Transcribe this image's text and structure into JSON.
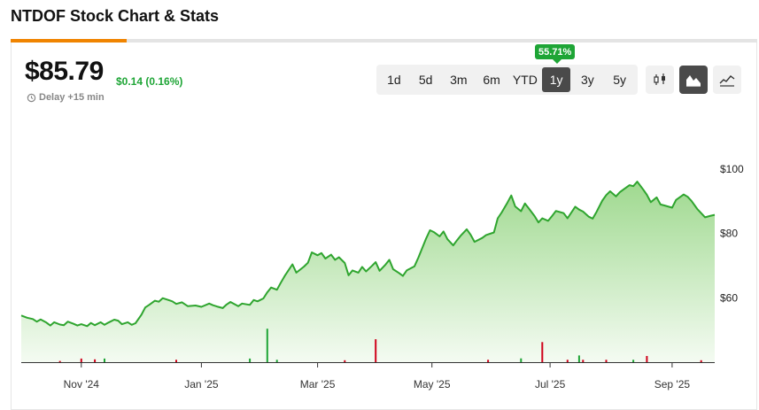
{
  "page": {
    "title": "NTDOF Stock Chart & Stats"
  },
  "quote": {
    "price": "$85.79",
    "change": "$0.14 (0.16%)",
    "delay": "Delay +15 min",
    "return_badge": "55.71%"
  },
  "ranges": [
    "1d",
    "5d",
    "3m",
    "6m",
    "YTD",
    "1y",
    "3y",
    "5y"
  ],
  "active_range": "1y",
  "chart_types": [
    {
      "name": "candlestick-icon",
      "active": false
    },
    {
      "name": "mountain-chart-icon",
      "active": true
    },
    {
      "name": "line-chart-icon",
      "active": false
    }
  ],
  "colors": {
    "accent": "#f08400",
    "up": "#1ea536",
    "down": "#d0021b",
    "line": "#2fa52f",
    "area_top": "#9fd98f"
  },
  "chart_data": {
    "type": "area",
    "ylim": [
      40,
      103
    ],
    "y_ticks": [
      {
        "label": "$100",
        "value": 100
      },
      {
        "label": "$80",
        "value": 80
      },
      {
        "label": "$60",
        "value": 60
      }
    ],
    "x_ticks": [
      {
        "label": "Nov '24",
        "date": "2024-11-01"
      },
      {
        "label": "Jan '25",
        "date": "2025-01-02"
      },
      {
        "label": "Mar '25",
        "date": "2025-03-03"
      },
      {
        "label": "May '25",
        "date": "2025-05-01"
      },
      {
        "label": "Jul '25",
        "date": "2025-07-01"
      },
      {
        "label": "Sep '25",
        "date": "2025-09-02"
      }
    ],
    "price_series": [
      [
        "2024-10-01",
        54.5
      ],
      [
        "2024-10-04",
        53.8
      ],
      [
        "2024-10-07",
        53.4
      ],
      [
        "2024-10-09",
        52.6
      ],
      [
        "2024-10-11",
        53.3
      ],
      [
        "2024-10-14",
        52.3
      ],
      [
        "2024-10-16",
        51.4
      ],
      [
        "2024-10-18",
        52.4
      ],
      [
        "2024-10-21",
        51.7
      ],
      [
        "2024-10-23",
        51.5
      ],
      [
        "2024-10-25",
        52.6
      ],
      [
        "2024-10-28",
        51.9
      ],
      [
        "2024-10-30",
        51.4
      ],
      [
        "2024-11-01",
        51.8
      ],
      [
        "2024-11-04",
        51.2
      ],
      [
        "2024-11-06",
        52.2
      ],
      [
        "2024-11-08",
        51.5
      ],
      [
        "2024-11-11",
        52.4
      ],
      [
        "2024-11-13",
        51.6
      ],
      [
        "2024-11-15",
        52.3
      ],
      [
        "2024-11-18",
        53.2
      ],
      [
        "2024-11-20",
        52.9
      ],
      [
        "2024-11-22",
        51.8
      ],
      [
        "2024-11-25",
        52.4
      ],
      [
        "2024-11-27",
        51.6
      ],
      [
        "2024-11-29",
        52.1
      ],
      [
        "2024-12-02",
        54.7
      ],
      [
        "2024-12-04",
        57.0
      ],
      [
        "2024-12-06",
        57.8
      ],
      [
        "2024-12-09",
        59.1
      ],
      [
        "2024-12-11",
        58.8
      ],
      [
        "2024-12-13",
        59.9
      ],
      [
        "2024-12-16",
        59.3
      ],
      [
        "2024-12-18",
        58.9
      ],
      [
        "2024-12-20",
        58.1
      ],
      [
        "2024-12-23",
        58.6
      ],
      [
        "2024-12-26",
        57.4
      ],
      [
        "2024-12-30",
        57.6
      ],
      [
        "2025-01-02",
        57.2
      ],
      [
        "2025-01-06",
        58.2
      ],
      [
        "2025-01-08",
        57.7
      ],
      [
        "2025-01-10",
        57.3
      ],
      [
        "2025-01-13",
        56.8
      ],
      [
        "2025-01-15",
        57.9
      ],
      [
        "2025-01-17",
        58.7
      ],
      [
        "2025-01-21",
        57.4
      ],
      [
        "2025-01-23",
        58.2
      ],
      [
        "2025-01-27",
        57.8
      ],
      [
        "2025-01-29",
        59.3
      ],
      [
        "2025-01-31",
        58.9
      ],
      [
        "2025-02-03",
        59.8
      ],
      [
        "2025-02-05",
        61.7
      ],
      [
        "2025-02-07",
        63.2
      ],
      [
        "2025-02-10",
        62.5
      ],
      [
        "2025-02-12",
        64.7
      ],
      [
        "2025-02-14",
        66.8
      ],
      [
        "2025-02-18",
        70.4
      ],
      [
        "2025-02-20",
        67.8
      ],
      [
        "2025-02-24",
        69.7
      ],
      [
        "2025-02-26",
        70.9
      ],
      [
        "2025-02-28",
        74.1
      ],
      [
        "2025-03-03",
        73.2
      ],
      [
        "2025-03-05",
        73.9
      ],
      [
        "2025-03-07",
        72.2
      ],
      [
        "2025-03-10",
        73.4
      ],
      [
        "2025-03-12",
        71.8
      ],
      [
        "2025-03-14",
        72.6
      ],
      [
        "2025-03-17",
        70.8
      ],
      [
        "2025-03-19",
        67.0
      ],
      [
        "2025-03-21",
        68.5
      ],
      [
        "2025-03-24",
        67.8
      ],
      [
        "2025-03-26",
        69.6
      ],
      [
        "2025-03-28",
        68.2
      ],
      [
        "2025-03-31",
        69.9
      ],
      [
        "2025-04-02",
        71.1
      ],
      [
        "2025-04-04",
        68.4
      ],
      [
        "2025-04-07",
        70.3
      ],
      [
        "2025-04-09",
        71.8
      ],
      [
        "2025-04-11",
        68.9
      ],
      [
        "2025-04-14",
        67.7
      ],
      [
        "2025-04-16",
        66.8
      ],
      [
        "2025-04-18",
        68.5
      ],
      [
        "2025-04-22",
        69.8
      ],
      [
        "2025-04-24",
        72.5
      ],
      [
        "2025-04-28",
        78.4
      ],
      [
        "2025-04-30",
        81.0
      ],
      [
        "2025-05-02",
        80.4
      ],
      [
        "2025-05-05",
        79.1
      ],
      [
        "2025-05-07",
        80.6
      ],
      [
        "2025-05-09",
        78.2
      ],
      [
        "2025-05-12",
        76.3
      ],
      [
        "2025-05-14",
        77.9
      ],
      [
        "2025-05-16",
        79.4
      ],
      [
        "2025-05-19",
        81.3
      ],
      [
        "2025-05-21",
        79.6
      ],
      [
        "2025-05-23",
        77.4
      ],
      [
        "2025-05-27",
        78.6
      ],
      [
        "2025-05-29",
        79.5
      ],
      [
        "2025-06-02",
        80.3
      ],
      [
        "2025-06-04",
        84.7
      ],
      [
        "2025-06-06",
        86.5
      ],
      [
        "2025-06-09",
        89.6
      ],
      [
        "2025-06-11",
        91.8
      ],
      [
        "2025-06-13",
        88.4
      ],
      [
        "2025-06-16",
        86.9
      ],
      [
        "2025-06-18",
        89.3
      ],
      [
        "2025-06-20",
        87.8
      ],
      [
        "2025-06-23",
        85.4
      ],
      [
        "2025-06-25",
        83.4
      ],
      [
        "2025-06-27",
        84.7
      ],
      [
        "2025-06-30",
        83.9
      ],
      [
        "2025-07-02",
        85.4
      ],
      [
        "2025-07-04",
        87.0
      ],
      [
        "2025-07-08",
        86.3
      ],
      [
        "2025-07-10",
        84.7
      ],
      [
        "2025-07-14",
        88.3
      ],
      [
        "2025-07-16",
        87.4
      ],
      [
        "2025-07-18",
        86.8
      ],
      [
        "2025-07-21",
        85.2
      ],
      [
        "2025-07-23",
        84.6
      ],
      [
        "2025-07-25",
        86.7
      ],
      [
        "2025-07-28",
        90.2
      ],
      [
        "2025-07-30",
        91.9
      ],
      [
        "2025-08-01",
        93.1
      ],
      [
        "2025-08-04",
        91.5
      ],
      [
        "2025-08-06",
        92.8
      ],
      [
        "2025-08-08",
        93.7
      ],
      [
        "2025-08-11",
        95.0
      ],
      [
        "2025-08-13",
        94.7
      ],
      [
        "2025-08-15",
        96.1
      ],
      [
        "2025-08-18",
        93.7
      ],
      [
        "2025-08-20",
        92.0
      ],
      [
        "2025-08-22",
        89.7
      ],
      [
        "2025-08-25",
        91.2
      ],
      [
        "2025-08-27",
        89.0
      ],
      [
        "2025-08-29",
        88.7
      ],
      [
        "2025-09-02",
        88.0
      ],
      [
        "2025-09-04",
        90.4
      ],
      [
        "2025-09-08",
        92.1
      ],
      [
        "2025-09-10",
        91.4
      ],
      [
        "2025-09-12",
        90.1
      ],
      [
        "2025-09-15",
        87.6
      ],
      [
        "2025-09-17",
        86.3
      ],
      [
        "2025-09-19",
        85.0
      ],
      [
        "2025-09-22",
        85.5
      ],
      [
        "2025-09-24",
        85.79
      ]
    ],
    "volume_series": [
      [
        "2024-10-21",
        0.5,
        "down"
      ],
      [
        "2024-11-01",
        1.5,
        "down"
      ],
      [
        "2024-11-08",
        1.2,
        "down"
      ],
      [
        "2024-11-13",
        1.5,
        "up"
      ],
      [
        "2024-12-20",
        1.0,
        "down"
      ],
      [
        "2025-01-27",
        1.5,
        "up"
      ],
      [
        "2025-02-05",
        14.0,
        "up"
      ],
      [
        "2025-02-10",
        1.0,
        "up"
      ],
      [
        "2025-03-17",
        0.8,
        "down"
      ],
      [
        "2025-04-02",
        9.6,
        "down"
      ],
      [
        "2025-05-30",
        1.0,
        "down"
      ],
      [
        "2025-06-16",
        1.6,
        "up"
      ],
      [
        "2025-06-27",
        8.4,
        "down"
      ],
      [
        "2025-07-10",
        1.0,
        "down"
      ],
      [
        "2025-07-16",
        2.8,
        "up"
      ],
      [
        "2025-07-18",
        1.0,
        "down"
      ],
      [
        "2025-07-30",
        1.0,
        "down"
      ],
      [
        "2025-08-13",
        1.0,
        "up"
      ],
      [
        "2025-08-20",
        2.6,
        "down"
      ],
      [
        "2025-09-17",
        0.8,
        "down"
      ]
    ]
  }
}
